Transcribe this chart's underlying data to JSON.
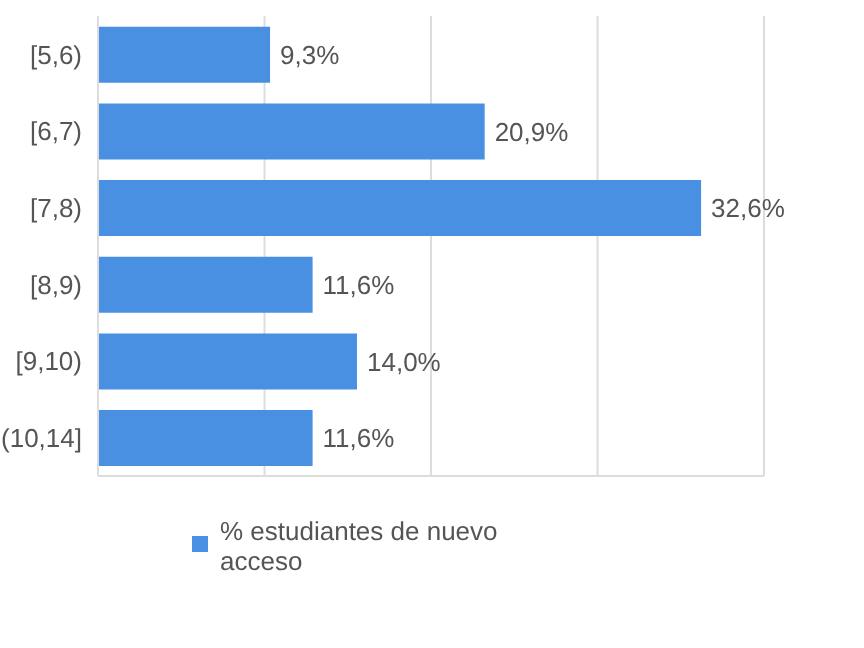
{
  "chart_data": {
    "type": "bar",
    "orientation": "horizontal",
    "categories": [
      "[5,6)",
      "[6,7)",
      "[7,8)",
      "[8,9)",
      "[9,10)",
      "(10,14]"
    ],
    "series": [
      {
        "name": "% estudiantes de nuevo acceso",
        "color": "#4a90e2",
        "values": [
          9.3,
          20.9,
          32.6,
          11.6,
          14.0,
          11.6
        ],
        "value_labels": [
          "9,3%",
          "20,9%",
          "32,6%",
          "11,6%",
          "14,0%",
          "11,6%"
        ]
      }
    ],
    "tick_labels": "y",
    "grid": "x",
    "legend": "bottom"
  }
}
